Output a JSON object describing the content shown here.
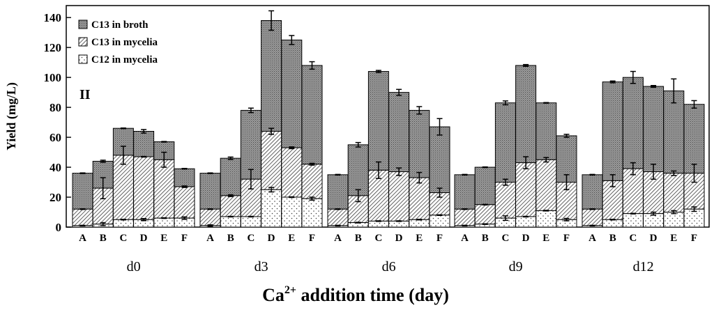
{
  "chart_data": {
    "type": "bar",
    "stacked": true,
    "panel_label": "II",
    "ylabel": "Yield (mg/L)",
    "xlabel": {
      "base": "Ca",
      "sup": "2+",
      "rest": " addition time (day)"
    },
    "ylim": [
      0,
      148
    ],
    "yticks": [
      0,
      20,
      40,
      60,
      80,
      100,
      120,
      140
    ],
    "groups": [
      "d0",
      "d3",
      "d6",
      "d9",
      "d12"
    ],
    "categories": [
      "A",
      "B",
      "C",
      "D",
      "E",
      "F"
    ],
    "legend": [
      "C13 in broth",
      "C13 in mycelia",
      "C12 in mycelia"
    ],
    "colors": {
      "broth": "#8a8a8a",
      "hatch": "#3a3a3a",
      "dots": "#555555",
      "stroke": "#000000"
    },
    "series_order": [
      "c12_mycelia",
      "c13_mycelia",
      "c13_broth"
    ],
    "bars": [
      {
        "group": "d0",
        "cat": "A",
        "c12_mycelia": 1,
        "c13_mycelia": 12,
        "c13_broth": 36,
        "err_c12": 0,
        "err_c13m": 0,
        "err_total": 0
      },
      {
        "group": "d0",
        "cat": "B",
        "c12_mycelia": 2,
        "c13_mycelia": 26,
        "c13_broth": 44,
        "err_c12": 1,
        "err_c13m": 7,
        "err_total": 0.7
      },
      {
        "group": "d0",
        "cat": "C",
        "c12_mycelia": 5,
        "c13_mycelia": 48,
        "c13_broth": 66,
        "err_c12": 0,
        "err_c13m": 6,
        "err_total": 0
      },
      {
        "group": "d0",
        "cat": "D",
        "c12_mycelia": 5,
        "c13_mycelia": 47,
        "c13_broth": 64,
        "err_c12": 0.7,
        "err_c13m": 0,
        "err_total": 1.2
      },
      {
        "group": "d0",
        "cat": "E",
        "c12_mycelia": 6,
        "c13_mycelia": 45,
        "c13_broth": 57,
        "err_c12": 0,
        "err_c13m": 5,
        "err_total": 0
      },
      {
        "group": "d0",
        "cat": "F",
        "c12_mycelia": 6,
        "c13_mycelia": 27,
        "c13_broth": 39,
        "err_c12": 0.8,
        "err_c13m": 0.5,
        "err_total": 0
      },
      {
        "group": "d3",
        "cat": "A",
        "c12_mycelia": 1,
        "c13_mycelia": 12,
        "c13_broth": 36,
        "err_c12": 0.5,
        "err_c13m": 0,
        "err_total": 0
      },
      {
        "group": "d3",
        "cat": "B",
        "c12_mycelia": 7,
        "c13_mycelia": 21,
        "c13_broth": 46,
        "err_c12": 0,
        "err_c13m": 0.6,
        "err_total": 0.8
      },
      {
        "group": "d3",
        "cat": "C",
        "c12_mycelia": 7,
        "c13_mycelia": 32,
        "c13_broth": 78,
        "err_c12": 0,
        "err_c13m": 6.5,
        "err_total": 1.5
      },
      {
        "group": "d3",
        "cat": "D",
        "c12_mycelia": 25,
        "c13_mycelia": 64,
        "c13_broth": 138,
        "err_c12": 1.5,
        "err_c13m": 2,
        "err_total": 6.5
      },
      {
        "group": "d3",
        "cat": "E",
        "c12_mycelia": 20,
        "c13_mycelia": 53,
        "c13_broth": 125,
        "err_c12": 0,
        "err_c13m": 0.6,
        "err_total": 3
      },
      {
        "group": "d3",
        "cat": "F",
        "c12_mycelia": 19,
        "c13_mycelia": 42,
        "c13_broth": 108,
        "err_c12": 1,
        "err_c13m": 0.6,
        "err_total": 2.5
      },
      {
        "group": "d6",
        "cat": "A",
        "c12_mycelia": 1,
        "c13_mycelia": 12,
        "c13_broth": 35,
        "err_c12": 0,
        "err_c13m": 0,
        "err_total": 0
      },
      {
        "group": "d6",
        "cat": "B",
        "c12_mycelia": 3,
        "c13_mycelia": 21,
        "c13_broth": 55,
        "err_c12": 0,
        "err_c13m": 4,
        "err_total": 1.5
      },
      {
        "group": "d6",
        "cat": "C",
        "c12_mycelia": 4,
        "c13_mycelia": 38,
        "c13_broth": 104,
        "err_c12": 0,
        "err_c13m": 5.5,
        "err_total": 0.7
      },
      {
        "group": "d6",
        "cat": "D",
        "c12_mycelia": 4,
        "c13_mycelia": 37,
        "c13_broth": 90,
        "err_c12": 0,
        "err_c13m": 2.5,
        "err_total": 2
      },
      {
        "group": "d6",
        "cat": "E",
        "c12_mycelia": 5,
        "c13_mycelia": 33,
        "c13_broth": 78,
        "err_c12": 0,
        "err_c13m": 3.5,
        "err_total": 2.5
      },
      {
        "group": "d6",
        "cat": "F",
        "c12_mycelia": 8,
        "c13_mycelia": 23,
        "c13_broth": 67,
        "err_c12": 0,
        "err_c13m": 3,
        "err_total": 5.5
      },
      {
        "group": "d9",
        "cat": "A",
        "c12_mycelia": 1,
        "c13_mycelia": 12,
        "c13_broth": 35,
        "err_c12": 0,
        "err_c13m": 0,
        "err_total": 0
      },
      {
        "group": "d9",
        "cat": "B",
        "c12_mycelia": 2,
        "c13_mycelia": 15,
        "c13_broth": 40,
        "err_c12": 0,
        "err_c13m": 0,
        "err_total": 0
      },
      {
        "group": "d9",
        "cat": "C",
        "c12_mycelia": 6,
        "c13_mycelia": 30,
        "c13_broth": 83,
        "err_c12": 1.5,
        "err_c13m": 2,
        "err_total": 1.3
      },
      {
        "group": "d9",
        "cat": "D",
        "c12_mycelia": 7,
        "c13_mycelia": 43,
        "c13_broth": 108,
        "err_c12": 0,
        "err_c13m": 4,
        "err_total": 0.6
      },
      {
        "group": "d9",
        "cat": "E",
        "c12_mycelia": 11,
        "c13_mycelia": 45,
        "c13_broth": 83,
        "err_c12": 0,
        "err_c13m": 1.5,
        "err_total": 0
      },
      {
        "group": "d9",
        "cat": "F",
        "c12_mycelia": 5,
        "c13_mycelia": 30,
        "c13_broth": 61,
        "err_c12": 0.8,
        "err_c13m": 5,
        "err_total": 1
      },
      {
        "group": "d12",
        "cat": "A",
        "c12_mycelia": 1,
        "c13_mycelia": 12,
        "c13_broth": 35,
        "err_c12": 0,
        "err_c13m": 0,
        "err_total": 0
      },
      {
        "group": "d12",
        "cat": "B",
        "c12_mycelia": 5,
        "c13_mycelia": 31,
        "c13_broth": 97,
        "err_c12": 0,
        "err_c13m": 4,
        "err_total": 0.6
      },
      {
        "group": "d12",
        "cat": "C",
        "c12_mycelia": 9,
        "c13_mycelia": 39,
        "c13_broth": 100,
        "err_c12": 0,
        "err_c13m": 4,
        "err_total": 4
      },
      {
        "group": "d12",
        "cat": "D",
        "c12_mycelia": 9,
        "c13_mycelia": 37,
        "c13_broth": 94,
        "err_c12": 1,
        "err_c13m": 5,
        "err_total": 0.6
      },
      {
        "group": "d12",
        "cat": "E",
        "c12_mycelia": 10,
        "c13_mycelia": 36,
        "c13_broth": 91,
        "err_c12": 1,
        "err_c13m": 1.5,
        "err_total": 8
      },
      {
        "group": "d12",
        "cat": "F",
        "c12_mycelia": 12,
        "c13_mycelia": 36,
        "c13_broth": 82,
        "err_c12": 1.5,
        "err_c13m": 6,
        "err_total": 2.5
      }
    ]
  }
}
